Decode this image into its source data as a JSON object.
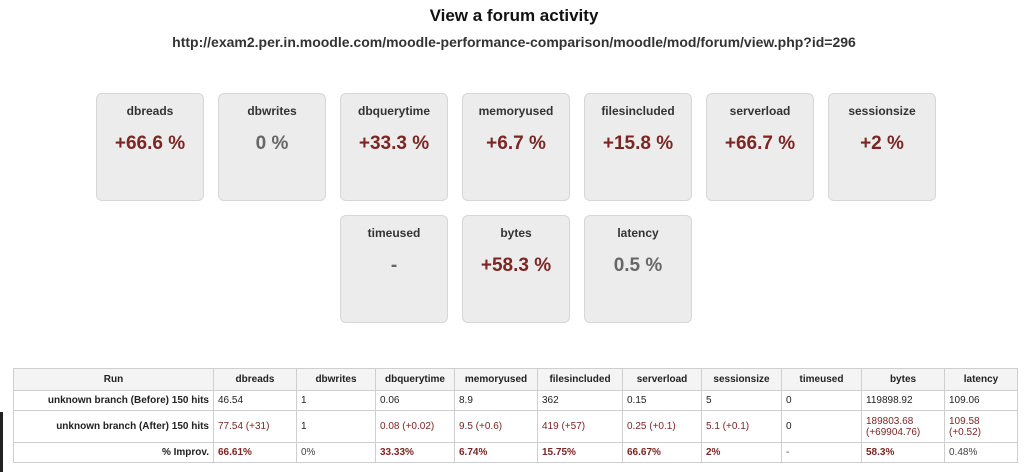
{
  "page": {
    "title": "View a forum activity",
    "url": "http://exam2.per.in.moodle.com/moodle-performance-comparison/moodle/mod/forum/view.php?id=296"
  },
  "cards": [
    {
      "label": "dbreads",
      "value": "+66.6 %",
      "tone": "changed"
    },
    {
      "label": "dbwrites",
      "value": "0 %",
      "tone": "neutral"
    },
    {
      "label": "dbquerytime",
      "value": "+33.3 %",
      "tone": "changed"
    },
    {
      "label": "memoryused",
      "value": "+6.7 %",
      "tone": "changed"
    },
    {
      "label": "filesincluded",
      "value": "+15.8 %",
      "tone": "changed"
    },
    {
      "label": "serverload",
      "value": "+66.7 %",
      "tone": "changed"
    },
    {
      "label": "sessionsize",
      "value": "+2 %",
      "tone": "changed"
    },
    {
      "label": "timeused",
      "value": "-",
      "tone": "neutral"
    },
    {
      "label": "bytes",
      "value": "+58.3 %",
      "tone": "changed"
    },
    {
      "label": "latency",
      "value": "0.5 %",
      "tone": "neutral"
    }
  ],
  "table": {
    "headers": [
      "Run",
      "dbreads",
      "dbwrites",
      "dbquerytime",
      "memoryused",
      "filesincluded",
      "serverload",
      "sessionsize",
      "timeused",
      "bytes",
      "latency"
    ],
    "before": [
      "unknown branch (Before) 150 hits",
      "46.54",
      "1",
      "0.06",
      "8.9",
      "362",
      "0.15",
      "5",
      "0",
      "119898.92",
      "109.06"
    ],
    "after": [
      "unknown branch (After) 150 hits",
      "77.54 (+31)",
      "1",
      "0.08 (+0.02)",
      "9.5 (+0.6)",
      "419 (+57)",
      "0.25 (+0.1)",
      "5.1 (+0.1)",
      "0",
      "189803.68 (+69904.76)",
      "109.58 (+0.52)"
    ],
    "improvement": [
      "% Improv.",
      "66.61%",
      "0%",
      "33.33%",
      "6.74%",
      "15.75%",
      "66.67%",
      "2%",
      "-",
      "58.3%",
      "0.48%"
    ]
  }
}
